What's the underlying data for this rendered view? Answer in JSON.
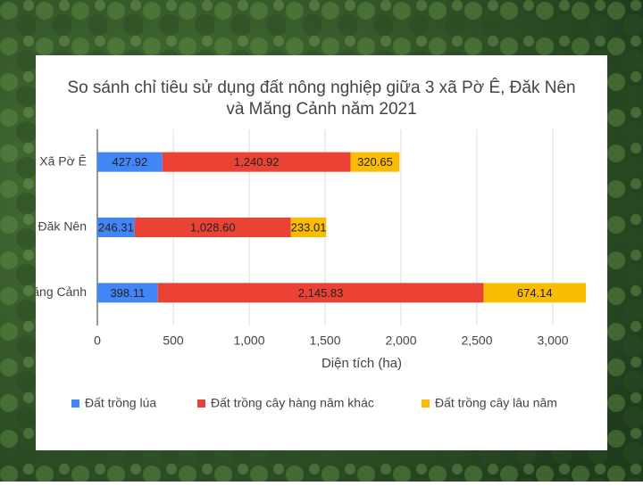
{
  "chart_data": {
    "type": "bar",
    "orientation": "horizontal",
    "stacked": true,
    "title": "So sánh chỉ tiêu sử dụng đất nông nghiệp giữa 3 xã Pờ Ê, Đăk Nên và Măng Cảnh năm 2021",
    "xlabel": "Diện tích (ha)",
    "categories": [
      "Xã Pờ Ê",
      "Xã Đăk Nên",
      "Xã Măng Cảnh"
    ],
    "series": [
      {
        "name": "Đất trồng lúa",
        "color": "#4285f4",
        "values": [
          427.92,
          246.31,
          398.11
        ],
        "value_labels": [
          "427.92",
          "246.31",
          "398.11"
        ]
      },
      {
        "name": "Đất trồng cây hàng năm khác",
        "color": "#ea4335",
        "values": [
          1240.92,
          1028.6,
          2145.83
        ],
        "value_labels": [
          "1,240.92",
          "1,028.60",
          "2,145.83"
        ]
      },
      {
        "name": "Đất trồng cây lâu năm",
        "color": "#fbbc04",
        "values": [
          320.65,
          233.01,
          674.14
        ],
        "value_labels": [
          "320.65",
          "233.01",
          "674.14"
        ]
      }
    ],
    "xlim": [
      0,
      3250
    ],
    "xticks": [
      0,
      500,
      {
        "value": 1000,
        "label": "1,000"
      },
      {
        "value": 1500,
        "label": "1,500"
      },
      {
        "value": 2000,
        "label": "2,000"
      },
      {
        "value": 2500,
        "label": "2,500"
      },
      {
        "value": 3000,
        "label": "3,000"
      }
    ],
    "grid": true,
    "legend": "bottom"
  }
}
